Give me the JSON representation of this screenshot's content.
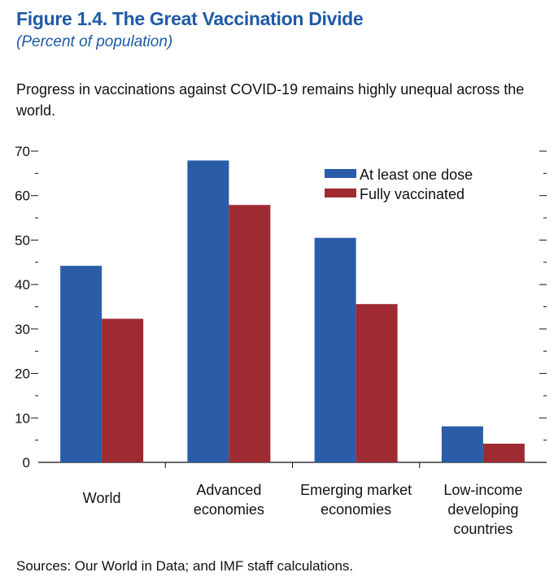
{
  "header": {
    "title": "Figure 1.4.  The Great Vaccination Divide",
    "subtitle": "(Percent of population)",
    "description": "Progress in vaccinations against COVID-19 remains highly unequal across the world."
  },
  "footer": {
    "source": "Sources: Our World in Data; and IMF staff calculations."
  },
  "colors": {
    "series1": "#2a5ca8",
    "series2": "#9e2b32"
  },
  "chart_data": {
    "type": "bar",
    "title": "The Great Vaccination Divide",
    "ylabel": "Percent of population",
    "xlabel": "",
    "ylim": [
      0,
      70
    ],
    "yticks": [
      0,
      10,
      20,
      30,
      40,
      50,
      60,
      70
    ],
    "grid": false,
    "legend_position": "top-right",
    "categories": [
      [
        "World"
      ],
      [
        "Advanced",
        "economies"
      ],
      [
        "Emerging market",
        "economies"
      ],
      [
        "Low-income",
        "developing",
        "countries"
      ]
    ],
    "series": [
      {
        "name": "At least one dose",
        "values": [
          44.2,
          67.9,
          50.5,
          8.1
        ]
      },
      {
        "name": "Fully vaccinated",
        "values": [
          32.3,
          57.9,
          35.6,
          4.2
        ]
      }
    ]
  }
}
